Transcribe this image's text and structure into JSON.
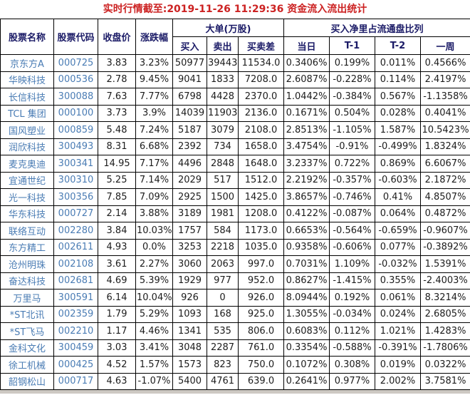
{
  "page": {
    "title": "实时行情截至:2019-11-26 11:29:36 资金流入流出统计"
  },
  "colors": {
    "title_red": "#cc2222",
    "header_navy": "#1a1a66",
    "stock_blue": "#4a7cb4",
    "value_black": "#1c1c1c",
    "border": "#000000",
    "page_background": "#cdc9c3"
  },
  "table": {
    "headers": {
      "name": "股票名称",
      "code": "股票代码",
      "close": "收盘价",
      "change": "涨跌幅",
      "big_order_group": "大单(万股)",
      "buy": "买入",
      "sell": "卖出",
      "diff": "买卖差",
      "ratio_group": "买入净里占流通盘比列",
      "day": "当日",
      "t1": "T-1",
      "t2": "T-2",
      "week": "一周"
    },
    "rows": [
      [
        "京东方A",
        "000725",
        "3.83",
        "3.23%",
        "50977",
        "39443",
        "11534.0",
        "0.3406%",
        "0.199%",
        "0.011%",
        "0.4566%"
      ],
      [
        "华映科技",
        "000536",
        "2.78",
        "9.45%",
        "9041",
        "1833",
        "7208.0",
        "2.6087%",
        "-0.228%",
        "0.114%",
        "2.4197%"
      ],
      [
        "长信科技",
        "300088",
        "7.63",
        "7.77%",
        "6798",
        "4428",
        "2370.0",
        "1.0442%",
        "-0.384%",
        "0.567%",
        "-1.1358%"
      ],
      [
        "TCL 集团",
        "000100",
        "3.73",
        "3.9%",
        "14039",
        "11903",
        "2136.0",
        "0.1671%",
        "0.504%",
        "0.028%",
        "0.4041%"
      ],
      [
        "国风塑业",
        "000859",
        "5.48",
        "7.24%",
        "5187",
        "3079",
        "2108.0",
        "2.8513%",
        "-1.105%",
        "1.587%",
        "10.5423%"
      ],
      [
        "润欣科技",
        "300493",
        "8.31",
        "6.68%",
        "2392",
        "734",
        "1658.0",
        "3.4754%",
        "-0.91%",
        "-0.499%",
        "1.8324%"
      ],
      [
        "麦克奥迪",
        "300341",
        "14.95",
        "7.17%",
        "4496",
        "2848",
        "1648.0",
        "3.2337%",
        "0.722%",
        "0.869%",
        "6.6067%"
      ],
      [
        "宜通世纪",
        "300310",
        "5.25",
        "7.14%",
        "2029",
        "517",
        "1512.0",
        "2.2192%",
        "-0.357%",
        "-0.603%",
        "2.1872%"
      ],
      [
        "光一科技",
        "300356",
        "7.85",
        "7.09%",
        "2925",
        "1500",
        "1425.0",
        "3.8657%",
        "-0.746%",
        "0.41%",
        "4.8507%"
      ],
      [
        "华东科技",
        "000727",
        "2.14",
        "3.88%",
        "3189",
        "1981",
        "1208.0",
        "0.4122%",
        "-0.087%",
        "0.064%",
        "0.4872%"
      ],
      [
        "联络互动",
        "002280",
        "3.84",
        "10.03%",
        "1757",
        "584",
        "1173.0",
        "0.6653%",
        "-0.564%",
        "-0.659%",
        "-0.9607%"
      ],
      [
        "东方精工",
        "002611",
        "4.93",
        "0.0%",
        "3253",
        "2218",
        "1035.0",
        "0.9358%",
        "-0.606%",
        "0.077%",
        "-0.3892%"
      ],
      [
        "沧州明珠",
        "002108",
        "3.61",
        "2.27%",
        "3060",
        "2063",
        "997.0",
        "0.7031%",
        "1.109%",
        "-0.032%",
        "1.5391%"
      ],
      [
        "奋达科技",
        "002681",
        "4.69",
        "5.39%",
        "1929",
        "977",
        "952.0",
        "0.8627%",
        "-1.415%",
        "0.355%",
        "-2.4003%"
      ],
      [
        "万里马",
        "300591",
        "6.14",
        "10.04%",
        "926",
        "0",
        "926.0",
        "8.0944%",
        "0.192%",
        "0.061%",
        "8.3214%"
      ],
      [
        "*ST北讯",
        "002359",
        "1.79",
        "5.29%",
        "1093",
        "168",
        "925.0",
        "1.3055%",
        "-0.034%",
        "0.024%",
        "2.6805%"
      ],
      [
        "*ST飞马",
        "002210",
        "1.17",
        "4.46%",
        "1341",
        "535",
        "806.0",
        "0.6083%",
        "0.112%",
        "1.021%",
        "1.4283%"
      ],
      [
        "金科文化",
        "300459",
        "3.03",
        "3.41%",
        "3048",
        "2287",
        "761.0",
        "0.3354%",
        "-0.588%",
        "-0.391%",
        "-1.7806%"
      ],
      [
        "徐工机械",
        "000425",
        "4.52",
        "1.57%",
        "1573",
        "823",
        "750.0",
        "0.1072%",
        "0.308%",
        "0.019%",
        "0.0322%"
      ],
      [
        "韶钢松山",
        "000717",
        "4.63",
        "-1.07%",
        "5400",
        "4761",
        "639.0",
        "0.2641%",
        "0.977%",
        "2.002%",
        "3.7581%"
      ]
    ]
  }
}
